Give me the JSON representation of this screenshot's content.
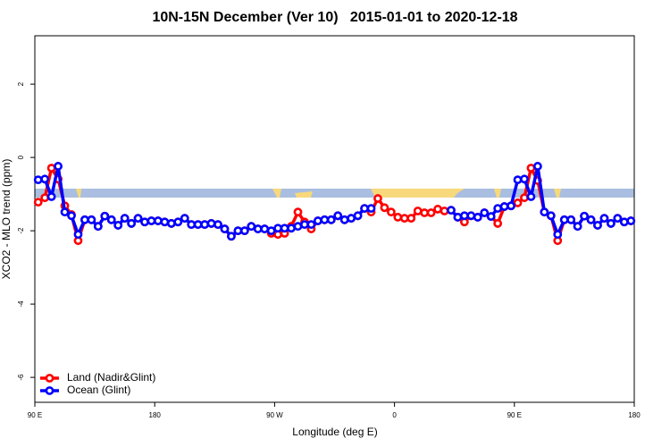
{
  "chart_data": {
    "type": "line",
    "title": "10N-15N December (Ver 10)   2015-01-01 to 2020-12-18",
    "x_label": "Longitude (deg E)",
    "y_label": "XCO2 - MLO trend (ppm)",
    "xlim": [
      90,
      540
    ],
    "xticks": [
      {
        "value": 90,
        "label": "90 E"
      },
      180,
      {
        "value": 270,
        "label": "90 W"
      },
      {
        "value": 360,
        "label": "0"
      },
      {
        "value": 450,
        "label": "90 E"
      },
      {
        "value": 540,
        "label": "180"
      }
    ],
    "ylim": [
      -6.68,
      3.32
    ],
    "yticks": [
      -6,
      -4,
      -2,
      0,
      2
    ],
    "legend": "bottom left",
    "x": [
      92.5,
      97.5,
      102.5,
      107.5,
      112.5,
      117.5,
      122.5,
      127.5,
      132.5,
      137.5,
      142.5,
      147.5,
      152.5,
      157.5,
      162.5,
      167.5,
      172.5,
      177.5,
      182.5,
      187.5,
      192.5,
      197.5,
      202.5,
      207.5,
      212.5,
      217.5,
      222.5,
      227.5,
      232.5,
      237.5,
      242.5,
      247.5,
      252.5,
      257.5,
      262.5,
      267.5,
      272.5,
      277.5,
      282.5,
      287.5,
      292.5,
      297.5,
      302.5,
      307.5,
      312.5,
      317.5,
      322.5,
      327.5,
      332.5,
      337.5,
      342.5,
      347.5,
      352.5,
      357.5,
      362.5,
      367.5,
      372.5,
      377.5,
      382.5,
      387.5,
      392.5,
      397.5,
      402.5,
      407.5,
      412.5,
      417.5,
      422.5,
      427.5,
      432.5,
      437.5,
      442.5,
      447.5,
      452.5,
      457.5,
      462.5,
      467.5,
      472.5,
      477.5,
      482.5,
      487.5,
      492.5,
      497.5,
      502.5,
      507.5,
      512.5,
      517.5,
      522.5,
      527.5,
      532.5,
      537.5
    ],
    "series": [
      {
        "name": "Land (Nadir&Glint)",
        "color": "#ff0000",
        "values": [
          -1.22,
          -1.1,
          -0.29,
          -0.59,
          -1.32,
          -1.56,
          -2.27,
          -1.7,
          -1.7,
          -1.88,
          -1.6,
          -1.7,
          -1.85,
          -1.66,
          -1.8,
          -1.66,
          -1.76,
          -1.73,
          -1.73,
          -1.76,
          -1.8,
          -1.76,
          -1.66,
          -1.83,
          -1.83,
          -1.83,
          -1.8,
          -1.83,
          -1.95,
          -2.15,
          -2.0,
          -2.0,
          -1.88,
          -1.95,
          -1.95,
          -2.07,
          -2.1,
          -2.07,
          -1.88,
          -1.49,
          -1.76,
          -1.95,
          -1.73,
          -1.7,
          -1.7,
          -1.59,
          -1.7,
          -1.66,
          -1.59,
          -1.39,
          -1.49,
          -1.12,
          -1.37,
          -1.49,
          -1.63,
          -1.66,
          -1.66,
          -1.46,
          -1.51,
          -1.51,
          -1.41,
          -1.46,
          -1.44,
          -1.63,
          -1.76,
          -1.59,
          -1.63,
          -1.51,
          -1.61,
          -1.8,
          -1.34,
          -1.32,
          -1.24,
          -1.1,
          -0.29,
          -0.63,
          -1.49,
          -1.59,
          -2.27,
          -1.7,
          -1.7,
          -1.88,
          -1.6,
          -1.7,
          -1.85,
          -1.66,
          -1.8,
          -1.66,
          -1.76,
          -1.73
        ]
      },
      {
        "name": "Ocean (Glint)",
        "color": "#0000ff",
        "values": [
          -0.61,
          -0.59,
          -1.07,
          -0.24,
          -1.49,
          -1.59,
          -2.1,
          -1.7,
          -1.7,
          -1.88,
          -1.6,
          -1.7,
          -1.85,
          -1.66,
          -1.8,
          -1.66,
          -1.76,
          -1.73,
          -1.73,
          -1.76,
          -1.8,
          -1.76,
          -1.66,
          -1.83,
          -1.83,
          -1.83,
          -1.8,
          -1.83,
          -1.95,
          -2.15,
          -2.0,
          -2.0,
          -1.88,
          -1.95,
          -1.95,
          -2.0,
          -1.93,
          -1.93,
          -1.93,
          -1.88,
          -1.83,
          -1.83,
          -1.73,
          -1.7,
          -1.7,
          -1.59,
          -1.7,
          -1.66,
          -1.59,
          -1.39,
          -1.39,
          null,
          null,
          null,
          null,
          null,
          null,
          null,
          null,
          null,
          null,
          null,
          -1.44,
          -1.63,
          -1.59,
          -1.59,
          -1.63,
          -1.51,
          -1.61,
          -1.39,
          -1.34,
          -1.32,
          -0.61,
          -0.59,
          -1.07,
          -0.24,
          -1.49,
          -1.59,
          -2.1,
          -1.7,
          -1.7,
          -1.88,
          -1.6,
          -1.7,
          -1.85,
          -1.66,
          -1.8,
          -1.66,
          -1.76,
          -1.73
        ]
      }
    ]
  }
}
